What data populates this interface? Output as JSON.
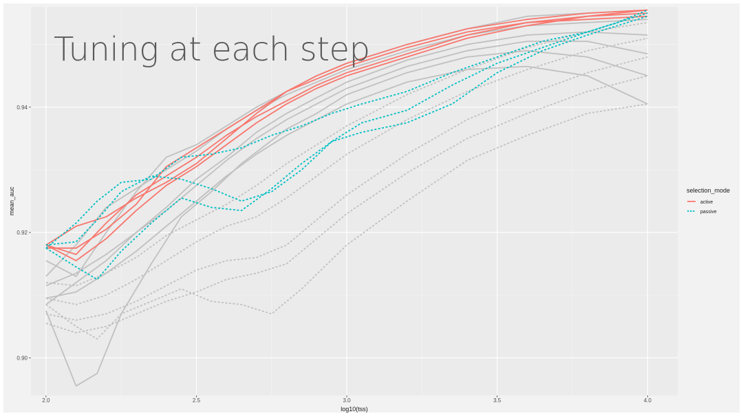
{
  "slide": {
    "title": "Tuning at each step"
  },
  "chart_data": {
    "type": "line",
    "title": "",
    "xlabel": "log10(tss)",
    "ylabel": "mean_auc",
    "xlim": [
      1.95,
      4.1
    ],
    "ylim": [
      0.894,
      0.956
    ],
    "x_ticks": [
      "2.0",
      "2.5",
      "3.0",
      "3.5",
      "4.0"
    ],
    "y_ticks": [
      "0.90",
      "0.92",
      "0.94"
    ],
    "grid": true,
    "legend": {
      "title": "selection_mode",
      "position": "right",
      "entries": [
        {
          "label": "active",
          "color": "#F8766D",
          "dash": "solid"
        },
        {
          "label": "passive",
          "color": "#00BFC4",
          "dash": "dotted"
        }
      ]
    },
    "series": [
      {
        "group": "background",
        "mode": "active",
        "color": "#c0c0c0",
        "x": [
          2.0,
          2.1,
          2.2,
          2.3,
          2.4,
          2.5,
          2.6,
          2.7,
          2.8,
          2.9,
          3.0,
          3.2,
          3.4,
          3.6,
          3.8,
          4.0
        ],
        "y": [
          0.9155,
          0.913,
          0.92,
          0.9265,
          0.932,
          0.934,
          0.937,
          0.94,
          0.9425,
          0.945,
          0.947,
          0.95,
          0.9525,
          0.9545,
          0.955,
          0.9555
        ]
      },
      {
        "group": "background",
        "mode": "active",
        "color": "#c0c0c0",
        "x": [
          2.0,
          2.1,
          2.2,
          2.3,
          2.4,
          2.5,
          2.6,
          2.7,
          2.8,
          2.9,
          3.0,
          3.2,
          3.4,
          3.6,
          3.8,
          4.0
        ],
        "y": [
          0.913,
          0.918,
          0.924,
          0.927,
          0.93,
          0.933,
          0.9365,
          0.9395,
          0.942,
          0.944,
          0.946,
          0.949,
          0.9515,
          0.953,
          0.9535,
          0.954
        ]
      },
      {
        "group": "background",
        "mode": "active",
        "color": "#c0c0c0",
        "x": [
          2.0,
          2.1,
          2.2,
          2.3,
          2.4,
          2.5,
          2.6,
          2.7,
          2.8,
          2.9,
          3.0,
          3.2,
          3.4,
          3.6,
          3.8,
          4.0
        ],
        "y": [
          0.9085,
          0.912,
          0.9155,
          0.92,
          0.924,
          0.9285,
          0.932,
          0.936,
          0.939,
          0.9415,
          0.944,
          0.9475,
          0.95,
          0.9515,
          0.952,
          0.9515
        ]
      },
      {
        "group": "background",
        "mode": "active",
        "color": "#c0c0c0",
        "x": [
          2.0,
          2.1,
          2.2,
          2.3,
          2.4,
          2.5,
          2.6,
          2.7,
          2.8,
          2.9,
          3.0,
          3.2,
          3.4,
          3.6,
          3.8,
          4.0
        ],
        "y": [
          0.9115,
          0.9135,
          0.9165,
          0.92,
          0.9235,
          0.9275,
          0.9315,
          0.935,
          0.938,
          0.9405,
          0.943,
          0.9465,
          0.949,
          0.9505,
          0.9505,
          0.9485
        ]
      },
      {
        "group": "background",
        "mode": "active",
        "color": "#c0c0c0",
        "x": [
          2.0,
          2.1,
          2.17,
          2.25,
          2.35,
          2.45,
          2.55,
          2.65,
          2.8,
          2.9,
          3.0,
          3.2,
          3.4,
          3.6,
          3.8,
          4.0
        ],
        "y": [
          0.9075,
          0.8955,
          0.8975,
          0.907,
          0.915,
          0.9225,
          0.9265,
          0.931,
          0.9365,
          0.939,
          0.942,
          0.9455,
          0.948,
          0.949,
          0.948,
          0.945
        ]
      },
      {
        "group": "background",
        "mode": "active",
        "color": "#c0c0c0",
        "x": [
          2.0,
          2.1,
          2.2,
          2.3,
          2.4,
          2.5,
          2.6,
          2.7,
          2.8,
          2.9,
          3.0,
          3.2,
          3.4,
          3.6,
          3.8,
          4.0
        ],
        "y": [
          0.9095,
          0.9105,
          0.9135,
          0.917,
          0.921,
          0.925,
          0.929,
          0.9325,
          0.9355,
          0.938,
          0.9405,
          0.944,
          0.946,
          0.9465,
          0.945,
          0.9405
        ]
      },
      {
        "group": "background",
        "mode": "passive",
        "color": "#c0c0c0",
        "x": [
          2.0,
          2.1,
          2.2,
          2.3,
          2.4,
          2.5,
          2.6,
          2.7,
          2.8,
          2.9,
          3.0,
          3.2,
          3.4,
          3.6,
          3.8,
          4.0
        ],
        "y": [
          0.912,
          0.9115,
          0.9135,
          0.916,
          0.9195,
          0.922,
          0.9245,
          0.9275,
          0.931,
          0.934,
          0.937,
          0.942,
          0.946,
          0.9495,
          0.952,
          0.9535
        ]
      },
      {
        "group": "background",
        "mode": "passive",
        "color": "#c0c0c0",
        "x": [
          2.0,
          2.1,
          2.2,
          2.3,
          2.4,
          2.5,
          2.6,
          2.7,
          2.8,
          2.9,
          3.0,
          3.2,
          3.4,
          3.6,
          3.8,
          4.0
        ],
        "y": [
          0.9095,
          0.9085,
          0.91,
          0.9125,
          0.9155,
          0.9185,
          0.921,
          0.9225,
          0.9255,
          0.929,
          0.9325,
          0.938,
          0.9425,
          0.946,
          0.949,
          0.951
        ]
      },
      {
        "group": "background",
        "mode": "passive",
        "color": "#c0c0c0",
        "x": [
          2.0,
          2.1,
          2.2,
          2.3,
          2.4,
          2.5,
          2.6,
          2.7,
          2.8,
          2.9,
          3.0,
          3.2,
          3.4,
          3.6,
          3.8,
          4.0
        ],
        "y": [
          0.907,
          0.906,
          0.907,
          0.909,
          0.9115,
          0.914,
          0.9155,
          0.916,
          0.918,
          0.922,
          0.926,
          0.9325,
          0.938,
          0.942,
          0.9455,
          0.948
        ]
      },
      {
        "group": "background",
        "mode": "passive",
        "color": "#c0c0c0",
        "x": [
          2.0,
          2.1,
          2.2,
          2.3,
          2.4,
          2.5,
          2.6,
          2.7,
          2.8,
          2.9,
          3.0,
          3.2,
          3.4,
          3.6,
          3.8,
          4.0
        ],
        "y": [
          0.9055,
          0.904,
          0.905,
          0.907,
          0.909,
          0.9105,
          0.9125,
          0.9135,
          0.915,
          0.919,
          0.923,
          0.9295,
          0.935,
          0.939,
          0.9425,
          0.945
        ]
      },
      {
        "group": "background",
        "mode": "passive",
        "color": "#c0c0c0",
        "x": [
          2.0,
          2.1,
          2.17,
          2.25,
          2.35,
          2.45,
          2.55,
          2.65,
          2.75,
          2.85,
          3.0,
          3.2,
          3.4,
          3.6,
          3.8,
          4.0
        ],
        "y": [
          0.9085,
          0.905,
          0.903,
          0.907,
          0.909,
          0.911,
          0.909,
          0.9085,
          0.907,
          0.911,
          0.918,
          0.925,
          0.9315,
          0.9355,
          0.939,
          0.9405
        ]
      }
    ],
    "highlighted": [
      {
        "mode": "active",
        "color": "#F8766D",
        "x": [
          2.0,
          2.1,
          2.2,
          2.3,
          2.4,
          2.5,
          2.6,
          2.7,
          2.8,
          2.9,
          3.0,
          3.2,
          3.4,
          3.6,
          3.8,
          4.0
        ],
        "y": [
          0.918,
          0.921,
          0.9225,
          0.9255,
          0.928,
          0.931,
          0.935,
          0.939,
          0.9425,
          0.9445,
          0.9465,
          0.9495,
          0.952,
          0.9535,
          0.954,
          0.9545
        ]
      },
      {
        "mode": "active",
        "color": "#F8766D",
        "x": [
          2.0,
          2.1,
          2.2,
          2.3,
          2.4,
          2.5,
          2.6,
          2.7,
          2.8,
          2.9,
          3.0,
          3.2,
          3.4,
          3.6,
          3.8,
          4.0
        ],
        "y": [
          0.918,
          0.9165,
          0.9215,
          0.926,
          0.929,
          0.932,
          0.9355,
          0.9385,
          0.941,
          0.9435,
          0.9455,
          0.9485,
          0.9515,
          0.9535,
          0.9545,
          0.955
        ]
      },
      {
        "mode": "active",
        "color": "#F8766D",
        "x": [
          2.0,
          2.1,
          2.2,
          2.3,
          2.4,
          2.5,
          2.6,
          2.7,
          2.8,
          2.9,
          3.0,
          3.2,
          3.4,
          3.6,
          3.8,
          4.0
        ],
        "y": [
          0.918,
          0.9155,
          0.919,
          0.9235,
          0.9275,
          0.9305,
          0.934,
          0.9375,
          0.9405,
          0.943,
          0.945,
          0.948,
          0.951,
          0.953,
          0.9545,
          0.9555
        ]
      },
      {
        "mode": "active",
        "color": "#F8766D",
        "x": [
          2.0,
          2.1,
          2.2,
          2.3,
          2.4,
          2.5,
          2.6,
          2.7,
          2.8,
          2.9,
          3.0,
          3.2,
          3.4,
          3.6,
          3.8,
          4.0
        ],
        "y": [
          0.9175,
          0.9175,
          0.9205,
          0.9245,
          0.9305,
          0.9335,
          0.9365,
          0.9395,
          0.9425,
          0.945,
          0.947,
          0.95,
          0.9525,
          0.954,
          0.955,
          0.9555
        ]
      },
      {
        "mode": "passive",
        "color": "#00BFC4",
        "x": [
          2.0,
          2.1,
          2.17,
          2.25,
          2.35,
          2.45,
          2.55,
          2.65,
          2.75,
          2.85,
          2.95,
          3.05,
          3.2,
          3.35,
          3.5,
          3.65,
          3.8,
          3.9,
          4.0
        ],
        "y": [
          0.9175,
          0.9215,
          0.925,
          0.928,
          0.9285,
          0.932,
          0.9325,
          0.9335,
          0.9355,
          0.937,
          0.939,
          0.9405,
          0.9425,
          0.9455,
          0.948,
          0.9505,
          0.952,
          0.9535,
          0.9555
        ]
      },
      {
        "mode": "passive",
        "color": "#00BFC4",
        "x": [
          2.0,
          2.1,
          2.17,
          2.25,
          2.35,
          2.45,
          2.55,
          2.65,
          2.75,
          2.85,
          2.95,
          3.05,
          3.2,
          3.35,
          3.5,
          3.65,
          3.8,
          3.9,
          4.0
        ],
        "y": [
          0.918,
          0.9185,
          0.922,
          0.9265,
          0.929,
          0.9285,
          0.927,
          0.925,
          0.9265,
          0.93,
          0.9345,
          0.9375,
          0.9395,
          0.9435,
          0.947,
          0.9495,
          0.952,
          0.9535,
          0.955
        ]
      },
      {
        "mode": "passive",
        "color": "#00BFC4",
        "x": [
          2.0,
          2.1,
          2.17,
          2.25,
          2.35,
          2.45,
          2.55,
          2.65,
          2.75,
          2.85,
          2.95,
          3.05,
          3.2,
          3.35,
          3.5,
          3.65,
          3.8,
          3.9,
          4.0
        ],
        "y": [
          0.9175,
          0.9145,
          0.9125,
          0.917,
          0.9215,
          0.9255,
          0.924,
          0.9235,
          0.927,
          0.931,
          0.9345,
          0.936,
          0.9375,
          0.9405,
          0.9455,
          0.949,
          0.9515,
          0.953,
          0.9545
        ]
      }
    ]
  }
}
